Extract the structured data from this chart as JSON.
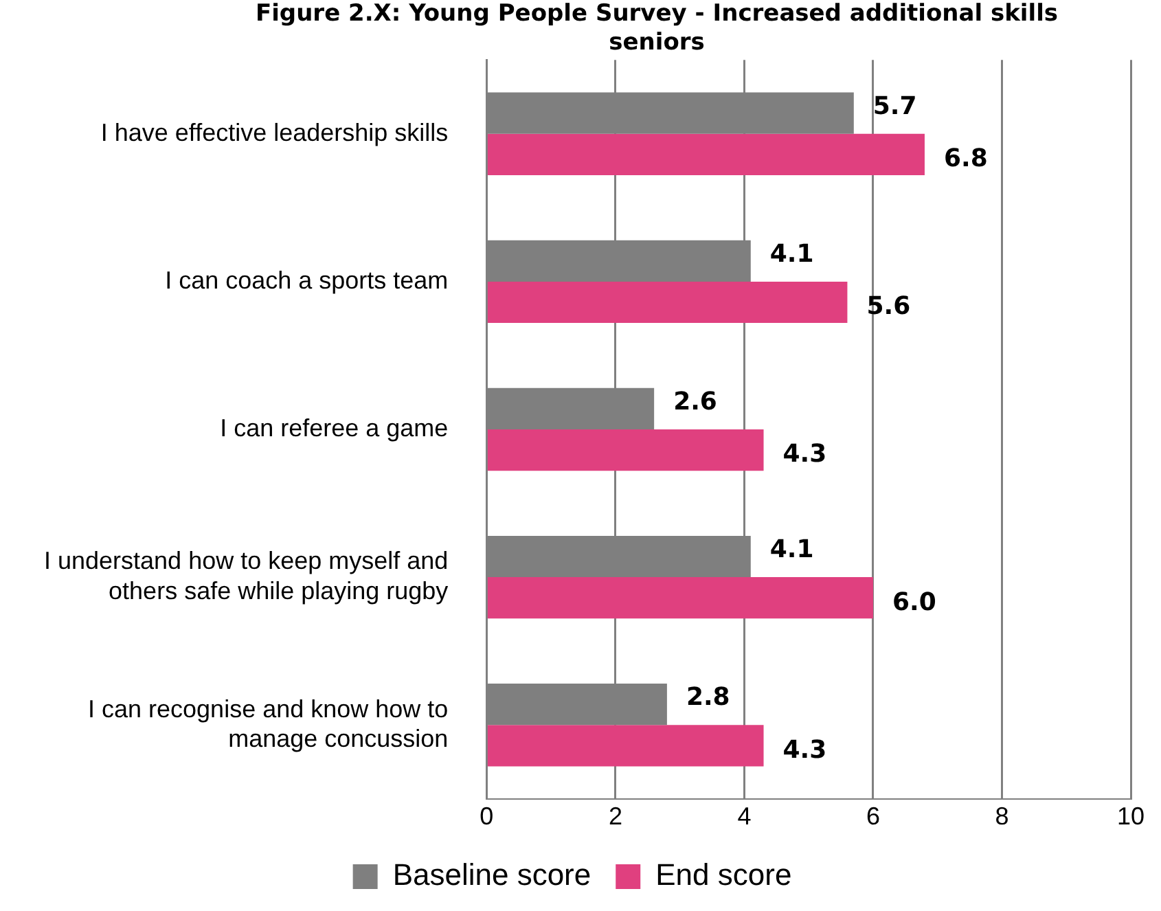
{
  "chart_data": {
    "type": "bar",
    "orientation": "horizontal",
    "title": "Figure 2.X: Young People Survey - Increased additional skills seniors",
    "categories": [
      "I have effective leadership skills",
      "I can coach a sports team",
      "I can referee a game",
      "I understand how to keep myself and others safe while playing rugby",
      "I can recognise and know how to manage concussion"
    ],
    "series": [
      {
        "name": "Baseline score",
        "color": "#7f7f7f",
        "values": [
          5.7,
          4.1,
          2.6,
          4.1,
          2.8
        ],
        "value_labels": [
          "5.7",
          "4.1",
          "2.6",
          "4.1",
          "2.8"
        ]
      },
      {
        "name": "End score",
        "color": "#e0407f",
        "values": [
          6.8,
          5.6,
          4.3,
          6.0,
          4.3
        ],
        "value_labels": [
          "6.8",
          "5.6",
          "4.3",
          "6.0",
          "4.3"
        ]
      }
    ],
    "xlim": [
      0,
      10
    ],
    "xticks": [
      0,
      2,
      4,
      6,
      8,
      10
    ],
    "grid": "x",
    "legend": "bottom"
  }
}
